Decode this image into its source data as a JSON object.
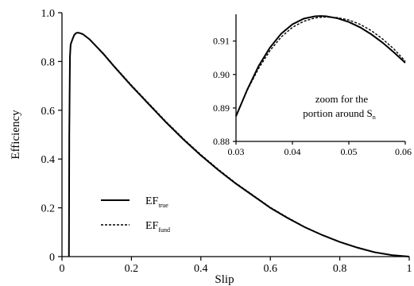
{
  "chart_data": [
    {
      "type": "line",
      "xlabel": "Slip",
      "ylabel": "Efficiency",
      "xlim": [
        0,
        1
      ],
      "ylim": [
        0,
        1
      ],
      "xticks": [
        0,
        0.2,
        0.4,
        0.6,
        0.8,
        1
      ],
      "xtick_labels": [
        "0",
        "0.2",
        "0.4",
        "0.6",
        "0.8",
        "1"
      ],
      "yticks": [
        0,
        0.2,
        0.4,
        0.6,
        0.8,
        1
      ],
      "ytick_labels": [
        "0",
        "0.2",
        "0.4",
        "0.6",
        "0.8",
        "1.0"
      ],
      "grid": false,
      "legend_position": "bottom-left",
      "series": [
        {
          "name": "true",
          "label_main": "EF",
          "label_sub": "true",
          "style": "solid",
          "x": [
            0.02,
            0.021,
            0.023,
            0.025,
            0.03,
            0.035,
            0.04,
            0.045,
            0.05,
            0.06,
            0.08,
            0.1,
            0.12,
            0.15,
            0.2,
            0.25,
            0.3,
            0.35,
            0.4,
            0.45,
            0.5,
            0.55,
            0.6,
            0.65,
            0.7,
            0.75,
            0.8,
            0.85,
            0.9,
            0.95,
            1.0
          ],
          "y": [
            0.0,
            0.5,
            0.82,
            0.87,
            0.89,
            0.908,
            0.916,
            0.918,
            0.917,
            0.912,
            0.89,
            0.86,
            0.83,
            0.78,
            0.7,
            0.625,
            0.55,
            0.48,
            0.415,
            0.355,
            0.3,
            0.25,
            0.2,
            0.158,
            0.12,
            0.088,
            0.06,
            0.037,
            0.018,
            0.006,
            0.0
          ]
        },
        {
          "name": "fund",
          "label_main": "EF",
          "label_sub": "fund",
          "style": "dashed",
          "x": [
            0.02,
            0.021,
            0.023,
            0.025,
            0.03,
            0.035,
            0.04,
            0.045,
            0.05,
            0.06,
            0.08,
            0.1,
            0.12,
            0.15,
            0.2,
            0.25,
            0.3,
            0.35,
            0.4,
            0.45,
            0.5,
            0.55,
            0.6,
            0.65,
            0.7,
            0.75,
            0.8,
            0.85,
            0.9,
            0.95,
            1.0
          ],
          "y": [
            0.0,
            0.5,
            0.82,
            0.871,
            0.891,
            0.909,
            0.916,
            0.918,
            0.918,
            0.913,
            0.891,
            0.861,
            0.832,
            0.782,
            0.703,
            0.628,
            0.553,
            0.483,
            0.418,
            0.358,
            0.302,
            0.252,
            0.202,
            0.16,
            0.121,
            0.089,
            0.061,
            0.038,
            0.018,
            0.006,
            0.0
          ]
        }
      ]
    },
    {
      "type": "line",
      "xlim": [
        0.03,
        0.06
      ],
      "ylim": [
        0.88,
        0.918
      ],
      "xticks": [
        0.03,
        0.04,
        0.05,
        0.06
      ],
      "xtick_labels": [
        "0.03",
        "0.04",
        "0.05",
        "0.06"
      ],
      "yticks": [
        0.88,
        0.89,
        0.9,
        0.91
      ],
      "ytick_labels": [
        "0.88",
        "0.89",
        "0.90",
        "0.91"
      ],
      "annotation_line1": "zoom for the",
      "annotation_line2": "portion around S",
      "annotation_sub": "n",
      "series": [
        {
          "name": "true",
          "style": "solid",
          "x": [
            0.03,
            0.032,
            0.034,
            0.036,
            0.038,
            0.04,
            0.042,
            0.044,
            0.045,
            0.046,
            0.048,
            0.05,
            0.052,
            0.054,
            0.056,
            0.058,
            0.06
          ],
          "y": [
            0.8875,
            0.8955,
            0.9025,
            0.908,
            0.9122,
            0.915,
            0.9167,
            0.9174,
            0.9175,
            0.9174,
            0.9168,
            0.9157,
            0.9141,
            0.912,
            0.9095,
            0.9066,
            0.9035
          ]
        },
        {
          "name": "fund",
          "style": "dashed",
          "x": [
            0.03,
            0.032,
            0.034,
            0.036,
            0.038,
            0.04,
            0.042,
            0.044,
            0.045,
            0.046,
            0.048,
            0.05,
            0.052,
            0.054,
            0.056,
            0.058,
            0.06
          ],
          "y": [
            0.8877,
            0.8953,
            0.9018,
            0.9071,
            0.9112,
            0.9141,
            0.9159,
            0.9169,
            0.9171,
            0.9172,
            0.917,
            0.9163,
            0.915,
            0.9131,
            0.9106,
            0.9076,
            0.904
          ]
        }
      ]
    }
  ]
}
